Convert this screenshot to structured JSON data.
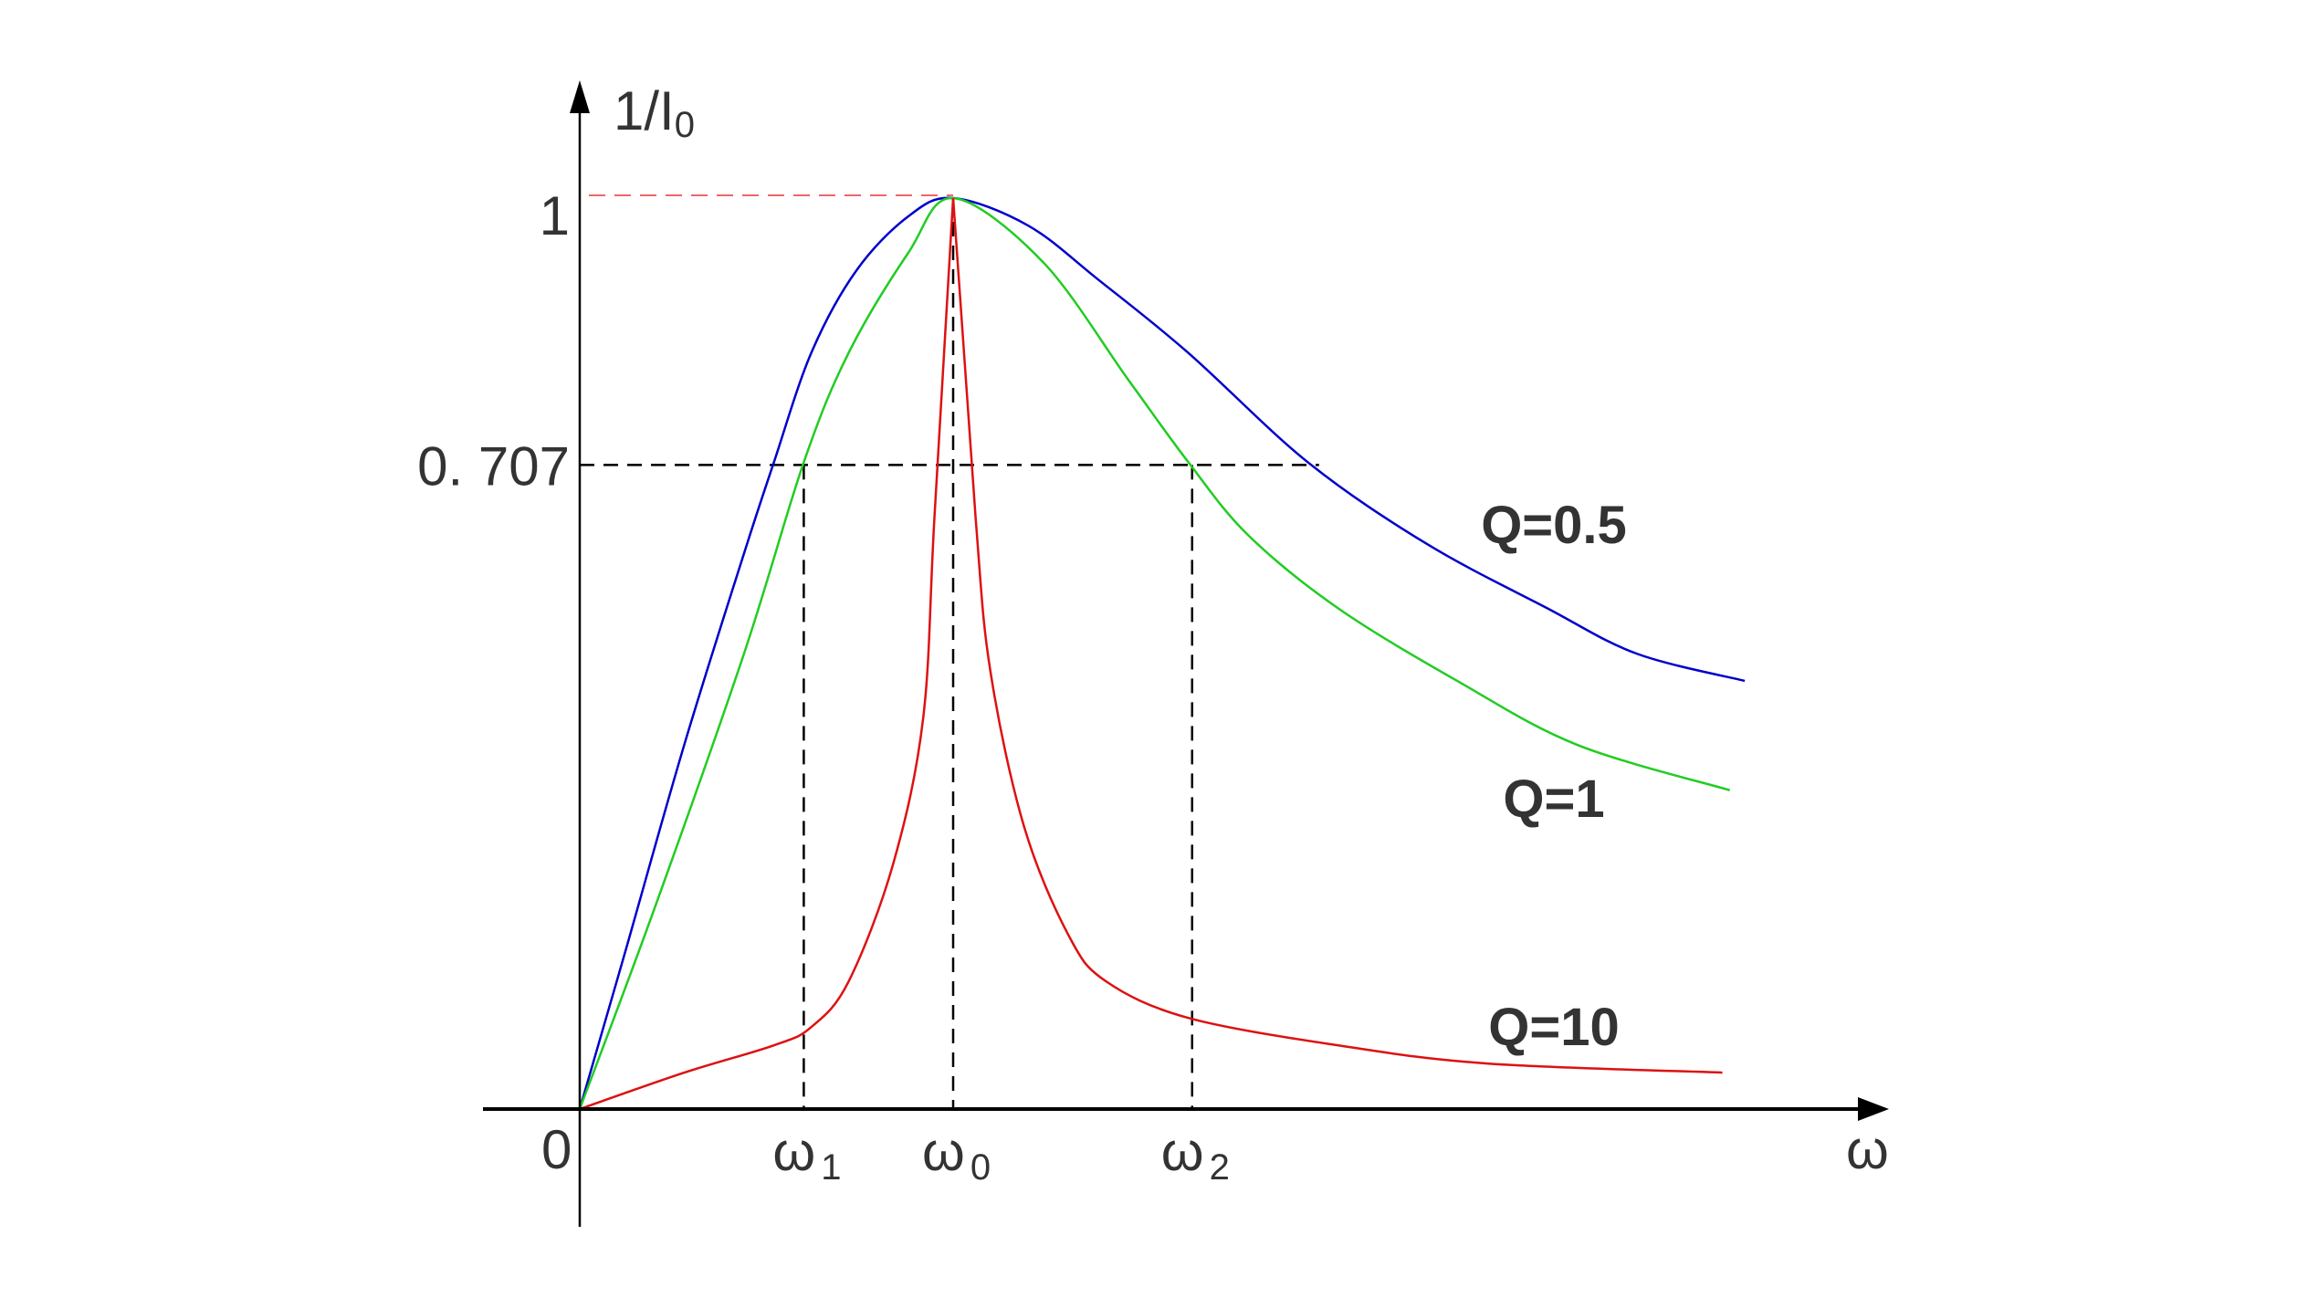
{
  "chart_data": {
    "type": "line",
    "title": "",
    "ylabel": "1/I",
    "ylabel_sub": "0",
    "xlabel": "ω",
    "origin_label": "0",
    "y_ticks": [
      {
        "value": 1,
        "label": "1"
      },
      {
        "value": 0.707,
        "label": "0. 707"
      }
    ],
    "x_ticks": [
      {
        "value": 0.6,
        "label": "ω",
        "sub": "1"
      },
      {
        "value": 1.0,
        "label": "ω",
        "sub": "0"
      },
      {
        "value": 1.64,
        "label": "ω",
        "sub": "2"
      }
    ],
    "half_power_extent": 1.98,
    "xlim": [
      -0.26,
      3.5
    ],
    "ylim": [
      -0.13,
      1.13
    ],
    "grid": false,
    "series": [
      {
        "name": "Q=0.5",
        "color": "#0000cc",
        "x": [
          0,
          0.12,
          0.28,
          0.44,
          0.52,
          0.62,
          0.74,
          0.88,
          1,
          1.2,
          1.39,
          1.63,
          1.95,
          2.27,
          2.59,
          2.83,
          3.12
        ],
        "y": [
          0,
          0.17,
          0.4,
          0.61,
          0.71,
          0.83,
          0.92,
          0.98,
          1,
          0.97,
          0.91,
          0.83,
          0.71,
          0.62,
          0.55,
          0.5,
          0.47
        ]
      },
      {
        "name": "Q=1",
        "color": "#22cc22",
        "x": [
          0,
          0.2,
          0.44,
          0.6,
          0.72,
          0.88,
          1,
          1.24,
          1.47,
          1.63,
          1.79,
          2.03,
          2.35,
          2.67,
          3.08
        ],
        "y": [
          0,
          0.22,
          0.5,
          0.71,
          0.83,
          0.94,
          1,
          0.93,
          0.8,
          0.71,
          0.63,
          0.55,
          0.47,
          0.4,
          0.35
        ]
      },
      {
        "name": "Q=10",
        "color": "#dd1111",
        "x": [
          0,
          0.28,
          0.52,
          0.62,
          0.72,
          0.84,
          0.92,
          0.95,
          1,
          1.06,
          1.1,
          1.19,
          1.31,
          1.41,
          1.63,
          2.03,
          2.43,
          3.06
        ],
        "y": [
          0,
          0.04,
          0.07,
          0.09,
          0.14,
          0.27,
          0.43,
          0.65,
          1,
          0.65,
          0.48,
          0.31,
          0.19,
          0.14,
          0.1,
          0.07,
          0.05,
          0.04
        ]
      }
    ],
    "peak_guide_color": "#ee6666"
  }
}
